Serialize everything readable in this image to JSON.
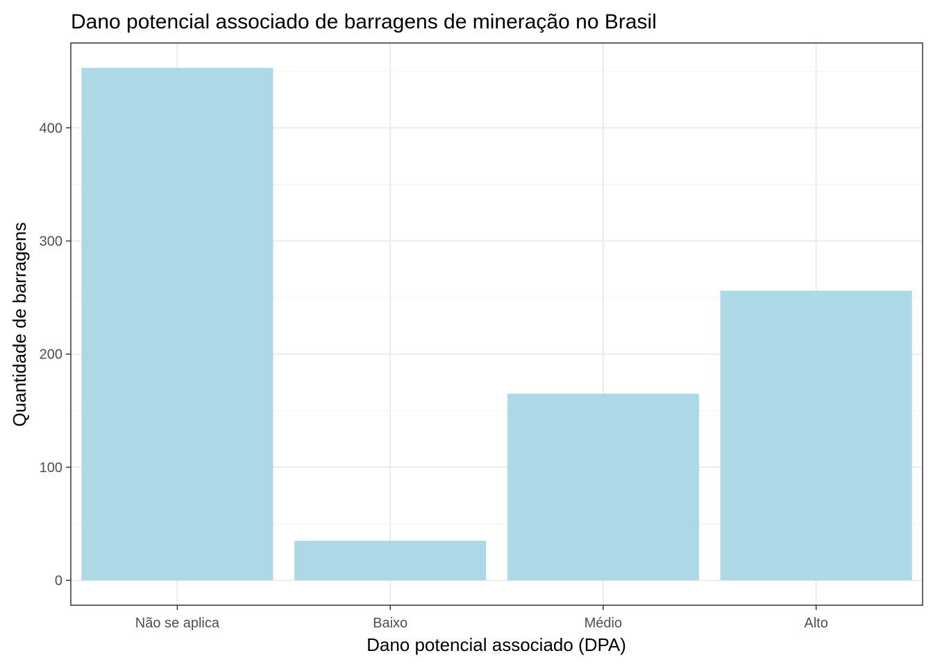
{
  "chart_data": {
    "type": "bar",
    "title": "Dano potencial associado de barragens de mineração no Brasil",
    "xlabel": "Dano potencial associado (DPA)",
    "ylabel": "Quantidade de barragens",
    "categories": [
      "Não se aplica",
      "Baixo",
      "Médio",
      "Alto"
    ],
    "values": [
      453,
      35,
      165,
      256
    ],
    "ylim": [
      -22,
      475
    ],
    "yticks": [
      0,
      100,
      200,
      300,
      400
    ],
    "ytick_labels": [
      "0",
      "100",
      "200",
      "300",
      "400"
    ],
    "grid": true,
    "legend": "none",
    "bar_color": "#ADD8E6"
  }
}
